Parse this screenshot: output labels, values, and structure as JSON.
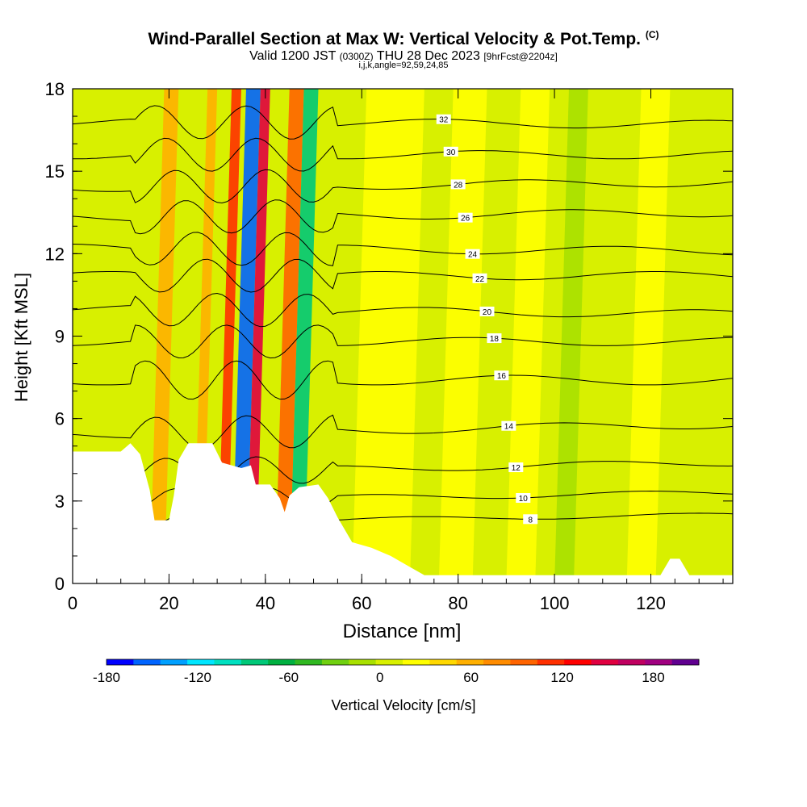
{
  "header": {
    "title": "Wind-Parallel Section at Max W: Vertical Velocity & Pot.Temp.",
    "copyright": "(C)",
    "valid_prefix": "Valid 1200 JST",
    "valid_utc": "(0300Z)",
    "valid_date": "THU 28 Dec 2023",
    "forecast": "[9hrFcst@2204z]",
    "indices": "i,j,k,angle=92,59,24,85"
  },
  "chart_data": {
    "type": "heatmap",
    "xlabel": "Distance [nm]",
    "ylabel": "Height [Kft MSL]",
    "xlim": [
      0,
      137
    ],
    "ylim": [
      0,
      18
    ],
    "x_ticks": [
      0,
      20,
      40,
      60,
      80,
      100,
      120
    ],
    "y_ticks": [
      0,
      3,
      6,
      9,
      12,
      15,
      18
    ],
    "colorbar": {
      "label": "Vertical Velocity [cm/s]",
      "range": [
        -180,
        210
      ],
      "ticks": [
        -180,
        -120,
        -60,
        0,
        60,
        120,
        180
      ],
      "colors": [
        "#0000ff",
        "#0064ff",
        "#00a0ff",
        "#00e6ff",
        "#00e0c0",
        "#00c878",
        "#00b040",
        "#30b820",
        "#70d010",
        "#a8e000",
        "#d8f000",
        "#ffff00",
        "#ffd800",
        "#ffb000",
        "#ff8c00",
        "#ff6400",
        "#ff3000",
        "#ff0000",
        "#e00040",
        "#c00060",
        "#a00080",
        "#600090"
      ]
    },
    "terrain": [
      [
        0,
        4.8
      ],
      [
        10,
        4.8
      ],
      [
        12,
        5.1
      ],
      [
        14,
        4.7
      ],
      [
        16,
        3.4
      ],
      [
        17,
        2.3
      ],
      [
        20,
        2.3
      ],
      [
        21,
        3.2
      ],
      [
        22,
        4.5
      ],
      [
        24,
        5.1
      ],
      [
        29,
        5.1
      ],
      [
        31,
        4.4
      ],
      [
        35,
        4.2
      ],
      [
        37,
        4.3
      ],
      [
        38,
        3.6
      ],
      [
        41,
        3.6
      ],
      [
        43,
        3.1
      ],
      [
        44,
        2.6
      ],
      [
        45,
        3.2
      ],
      [
        47,
        3.5
      ],
      [
        51,
        3.6
      ],
      [
        53,
        3.1
      ],
      [
        55,
        2.4
      ],
      [
        58,
        1.5
      ],
      [
        62,
        1.3
      ],
      [
        66,
        1.0
      ],
      [
        70,
        0.6
      ],
      [
        73,
        0.3
      ],
      [
        80,
        0.3
      ],
      [
        90,
        0.3
      ],
      [
        110,
        0.3
      ],
      [
        122,
        0.3
      ],
      [
        124,
        0.9
      ],
      [
        126,
        0.9
      ],
      [
        128,
        0.3
      ],
      [
        137,
        0.3
      ]
    ],
    "theta_contours": [
      {
        "label": "8",
        "h0": 2.2,
        "h1": 2.5,
        "amp": 0.3
      },
      {
        "label": "10",
        "h0": 3.0,
        "h1": 3.3,
        "amp": 0.4
      },
      {
        "label": "12",
        "h0": 4.0,
        "h1": 4.4,
        "amp": 0.5
      },
      {
        "label": "14",
        "h0": 5.4,
        "h1": 5.8,
        "amp": 0.6
      },
      {
        "label": "16",
        "h0": 7.4,
        "h1": 7.4,
        "amp": 0.7
      },
      {
        "label": "18",
        "h0": 8.8,
        "h1": 8.8,
        "amp": 0.6
      },
      {
        "label": "20",
        "h0": 10.0,
        "h1": 9.8,
        "amp": 0.6
      },
      {
        "label": "22",
        "h0": 11.2,
        "h1": 11.2,
        "amp": 0.6
      },
      {
        "label": "24",
        "h0": 12.2,
        "h1": 12.1,
        "amp": 0.6
      },
      {
        "label": "26",
        "h0": 13.3,
        "h1": 13.5,
        "amp": 0.6
      },
      {
        "label": "28",
        "h0": 14.4,
        "h1": 14.6,
        "amp": 0.6
      },
      {
        "label": "30",
        "h0": 15.6,
        "h1": 15.6,
        "amp": 0.6
      },
      {
        "label": "32",
        "h0": 16.8,
        "h1": 16.7,
        "amp": 0.6
      }
    ],
    "velocity_streaks": [
      {
        "x0": 16,
        "x1": 19,
        "w": 60
      },
      {
        "x0": 25,
        "x1": 27,
        "w": 60
      },
      {
        "x0": 30,
        "x1": 32,
        "w": 120
      },
      {
        "x0": 33,
        "x1": 36,
        "w": -150
      },
      {
        "x0": 36,
        "x1": 38,
        "w": 150
      },
      {
        "x0": 42,
        "x1": 45,
        "w": 100
      },
      {
        "x0": 45,
        "x1": 48,
        "w": -80
      },
      {
        "x0": 58,
        "x1": 70,
        "w": 20
      },
      {
        "x0": 76,
        "x1": 83,
        "w": 30
      },
      {
        "x0": 90,
        "x1": 96,
        "w": 30
      },
      {
        "x0": 100,
        "x1": 104,
        "w": -20
      },
      {
        "x0": 115,
        "x1": 121,
        "w": 20
      }
    ]
  }
}
